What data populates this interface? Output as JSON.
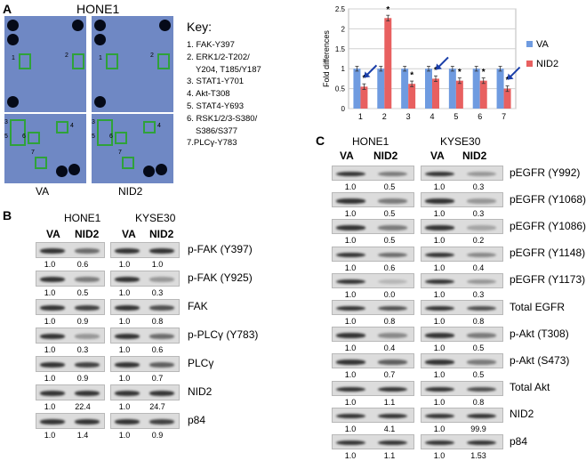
{
  "panel_labels": {
    "a": "A",
    "b": "B",
    "c": "C"
  },
  "panel_a": {
    "title": "HONE1",
    "array_labels": [
      "VA",
      "NID2"
    ],
    "spot_numbers": [
      "1",
      "2",
      "3",
      "4",
      "5",
      "6",
      "7"
    ],
    "key_title": "Key:",
    "key_lines": [
      "1. FAK-Y397",
      "2. ERK1/2-T202/",
      "Y204, T185/Y187",
      "3. STAT1-Y701",
      "4. Akt-T308",
      "5. STAT4-Y693",
      "6. RSK1/2/3-S380/",
      "S386/S377",
      "7.PLCγ-Y783"
    ]
  },
  "chart_data": {
    "type": "bar",
    "title": "",
    "xlabel": "",
    "ylabel": "Fold differences",
    "categories": [
      "1",
      "2",
      "3",
      "4",
      "5",
      "6",
      "7"
    ],
    "ylim": [
      0,
      2.5
    ],
    "yticks": [
      "0",
      "0.5",
      "1",
      "1.5",
      "2",
      "2.5"
    ],
    "grid": true,
    "legend_position": "right",
    "series": [
      {
        "name": "VA",
        "color": "#6f9be0",
        "values": [
          1.0,
          1.0,
          1.0,
          1.0,
          1.0,
          1.0,
          1.0
        ]
      },
      {
        "name": "NID2",
        "color": "#e86060",
        "values": [
          0.55,
          2.27,
          0.62,
          0.75,
          0.7,
          0.7,
          0.5
        ]
      }
    ],
    "annotations": [
      "*",
      "*",
      "*",
      "*",
      "*",
      "*",
      "*"
    ],
    "arrow_color": "#1a3ea8"
  },
  "panel_b": {
    "cell_lines": [
      "HONE1",
      "KYSE30"
    ],
    "conditions": [
      "VA",
      "NID2",
      "VA",
      "NID2"
    ],
    "rows": [
      {
        "label": "p-FAK (Y397)",
        "values": [
          "1.0",
          "0.6",
          "1.0",
          "1.0"
        ]
      },
      {
        "label": "p-FAK (Y925)",
        "values": [
          "1.0",
          "0.5",
          "1.0",
          "0.3"
        ]
      },
      {
        "label": "FAK",
        "values": [
          "1.0",
          "0.9",
          "1.0",
          "0.8"
        ]
      },
      {
        "label": "p-PLCγ (Y783)",
        "values": [
          "1.0",
          "0.3",
          "1.0",
          "0.6"
        ]
      },
      {
        "label": "PLCγ",
        "values": [
          "1.0",
          "0.9",
          "1.0",
          "0.7"
        ]
      },
      {
        "label": "NID2",
        "values": [
          "1.0",
          "22.4",
          "1.0",
          "24.7"
        ]
      },
      {
        "label": "p84",
        "values": [
          "1.0",
          "1.4",
          "1.0",
          "0.9"
        ]
      }
    ]
  },
  "panel_c": {
    "cell_lines": [
      "HONE1",
      "KYSE30"
    ],
    "conditions": [
      "VA",
      "NID2",
      "VA",
      "NID2"
    ],
    "rows": [
      {
        "label": "pEGFR (Y992)",
        "values": [
          "1.0",
          "0.5",
          "1.0",
          "0.3"
        ]
      },
      {
        "label": "pEGFR (Y1068)",
        "values": [
          "1.0",
          "0.5",
          "1.0",
          "0.3"
        ]
      },
      {
        "label": "pEGFR (Y1086)",
        "values": [
          "1.0",
          "0.5",
          "1.0",
          "0.2"
        ]
      },
      {
        "label": "pEGFR (Y1148)",
        "values": [
          "1.0",
          "0.6",
          "1.0",
          "0.4"
        ]
      },
      {
        "label": "pEGFR (Y1173)",
        "values": [
          "1.0",
          "0.0",
          "1.0",
          "0.3"
        ]
      },
      {
        "label": "Total EGFR",
        "values": [
          "1.0",
          "0.8",
          "1.0",
          "0.8"
        ]
      },
      {
        "label": "p-Akt (T308)",
        "values": [
          "1.0",
          "0.4",
          "1.0",
          "0.5"
        ]
      },
      {
        "label": "p-Akt (S473)",
        "values": [
          "1.0",
          "0.7",
          "1.0",
          "0.5"
        ]
      },
      {
        "label": "Total Akt",
        "values": [
          "1.0",
          "1.1",
          "1.0",
          "0.8"
        ]
      },
      {
        "label": "NID2",
        "values": [
          "1.0",
          "4.1",
          "1.0",
          "99.9"
        ]
      },
      {
        "label": "p84",
        "values": [
          "1.0",
          "1.1",
          "1.0",
          "1.53"
        ]
      }
    ]
  }
}
